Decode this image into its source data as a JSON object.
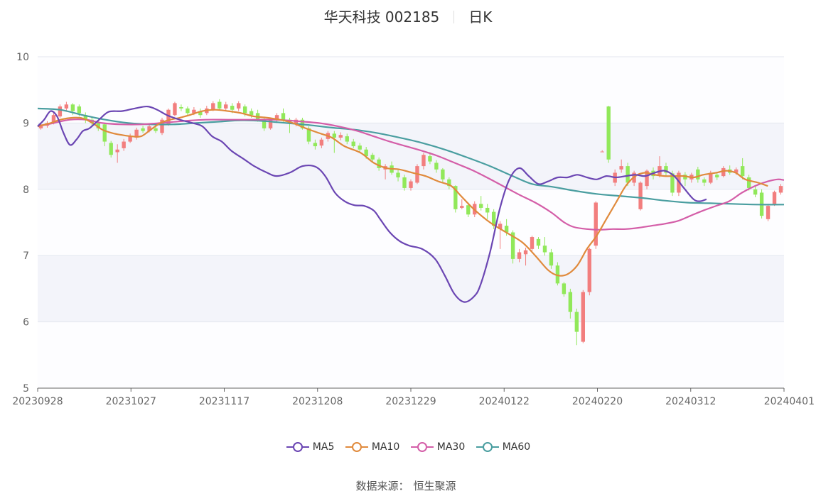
{
  "title": {
    "stock": "华天科技 002185",
    "period": "日K"
  },
  "source": {
    "label": "数据来源：",
    "value": "恒生聚源"
  },
  "colors": {
    "up": "#f27e7e",
    "down": "#91e85a",
    "ma5": "#6b46b3",
    "ma10": "#e08a3c",
    "ma30": "#d45ea8",
    "ma60": "#4a9ea0",
    "band": "#f3f4fa",
    "grid": "#e3e6ef"
  },
  "chart_data": {
    "type": "candlestick",
    "ylim": [
      5,
      10
    ],
    "yticks": [
      "5",
      "6",
      "7",
      "8",
      "9",
      "10"
    ],
    "xticks": [
      "20230928",
      "20231027",
      "20231117",
      "20231208",
      "20231229",
      "20240122",
      "20240220",
      "20240312",
      "20240401"
    ],
    "legend": [
      "MA5",
      "MA10",
      "MA30",
      "MA60"
    ],
    "candles": [
      [
        8.92,
        8.98,
        8.9,
        9.0
      ],
      [
        8.96,
        9.0,
        8.93,
        9.03
      ],
      [
        9.0,
        9.12,
        8.98,
        9.15
      ],
      [
        9.1,
        9.25,
        9.08,
        9.28
      ],
      [
        9.22,
        9.28,
        9.18,
        9.32
      ],
      [
        9.28,
        9.18,
        9.12,
        9.3
      ],
      [
        9.25,
        9.15,
        9.1,
        9.28
      ],
      [
        9.12,
        9.05,
        9.0,
        9.16
      ],
      [
        9.05,
        9.0,
        8.95,
        9.08
      ],
      [
        9.0,
        8.92,
        8.88,
        9.05
      ],
      [
        8.98,
        8.72,
        8.65,
        9.0
      ],
      [
        8.7,
        8.52,
        8.48,
        8.73
      ],
      [
        8.56,
        8.6,
        8.4,
        8.68
      ],
      [
        8.62,
        8.72,
        8.58,
        8.76
      ],
      [
        8.72,
        8.8,
        8.7,
        8.84
      ],
      [
        8.78,
        8.9,
        8.75,
        8.93
      ],
      [
        8.92,
        8.88,
        8.85,
        8.96
      ],
      [
        8.88,
        8.95,
        8.86,
        8.98
      ],
      [
        8.92,
        8.88,
        8.85,
        8.98
      ],
      [
        8.85,
        9.05,
        8.82,
        9.08
      ],
      [
        8.98,
        9.2,
        8.96,
        9.22
      ],
      [
        9.12,
        9.3,
        9.1,
        9.32
      ],
      [
        9.24,
        9.22,
        9.18,
        9.28
      ],
      [
        9.22,
        9.15,
        9.1,
        9.25
      ],
      [
        9.15,
        9.2,
        9.12,
        9.24
      ],
      [
        9.18,
        9.12,
        9.08,
        9.22
      ],
      [
        9.15,
        9.22,
        9.12,
        9.26
      ],
      [
        9.2,
        9.3,
        9.18,
        9.33
      ],
      [
        9.32,
        9.22,
        9.2,
        9.36
      ],
      [
        9.22,
        9.28,
        9.18,
        9.32
      ],
      [
        9.26,
        9.2,
        9.15,
        9.3
      ],
      [
        9.22,
        9.3,
        9.18,
        9.33
      ],
      [
        9.25,
        9.15,
        9.1,
        9.28
      ],
      [
        9.18,
        9.12,
        9.08,
        9.22
      ],
      [
        9.15,
        9.05,
        9.02,
        9.2
      ],
      [
        9.05,
        8.92,
        8.88,
        9.08
      ],
      [
        8.92,
        9.05,
        8.9,
        9.08
      ],
      [
        9.05,
        9.12,
        9.0,
        9.15
      ],
      [
        9.15,
        9.05,
        9.02,
        9.22
      ],
      [
        9.05,
        9.0,
        8.85,
        9.08
      ],
      [
        8.98,
        9.05,
        8.95,
        9.08
      ],
      [
        9.05,
        8.92,
        8.9,
        9.08
      ],
      [
        8.92,
        8.72,
        8.68,
        8.95
      ],
      [
        8.7,
        8.65,
        8.6,
        8.75
      ],
      [
        8.66,
        8.75,
        8.62,
        8.78
      ],
      [
        8.76,
        8.85,
        8.72,
        8.88
      ],
      [
        8.84,
        8.78,
        8.55,
        8.88
      ],
      [
        8.78,
        8.82,
        8.74,
        8.86
      ],
      [
        8.8,
        8.72,
        8.68,
        8.84
      ],
      [
        8.72,
        8.65,
        8.62,
        8.76
      ],
      [
        8.66,
        8.6,
        8.55,
        8.7
      ],
      [
        8.6,
        8.5,
        8.46,
        8.64
      ],
      [
        8.52,
        8.45,
        8.4,
        8.55
      ],
      [
        8.45,
        8.32,
        8.28,
        8.48
      ],
      [
        8.3,
        8.35,
        8.15,
        8.38
      ],
      [
        8.36,
        8.25,
        8.22,
        8.42
      ],
      [
        8.25,
        8.18,
        8.12,
        8.3
      ],
      [
        8.18,
        8.02,
        7.98,
        8.22
      ],
      [
        8.02,
        8.12,
        7.98,
        8.15
      ],
      [
        8.1,
        8.35,
        8.08,
        8.38
      ],
      [
        8.35,
        8.52,
        8.3,
        8.55
      ],
      [
        8.5,
        8.42,
        8.38,
        8.56
      ],
      [
        8.4,
        8.3,
        8.25,
        8.44
      ],
      [
        8.3,
        8.15,
        8.1,
        8.32
      ],
      [
        8.15,
        8.05,
        8.0,
        8.18
      ],
      [
        8.05,
        7.7,
        7.65,
        8.06
      ],
      [
        7.72,
        7.75,
        7.7,
        7.85
      ],
      [
        7.76,
        7.62,
        7.58,
        7.8
      ],
      [
        7.62,
        7.78,
        7.58,
        7.82
      ],
      [
        7.78,
        7.72,
        7.68,
        7.9
      ],
      [
        7.72,
        7.65,
        7.55,
        7.78
      ],
      [
        7.66,
        7.45,
        7.4,
        7.7
      ],
      [
        7.4,
        7.48,
        7.1,
        7.52
      ],
      [
        7.45,
        7.35,
        7.3,
        7.55
      ],
      [
        7.35,
        6.95,
        6.88,
        7.38
      ],
      [
        6.95,
        7.05,
        6.9,
        7.1
      ],
      [
        7.02,
        7.08,
        6.85,
        7.12
      ],
      [
        7.1,
        7.28,
        7.05,
        7.3
      ],
      [
        7.25,
        7.15,
        7.1,
        7.28
      ],
      [
        7.15,
        7.05,
        7.0,
        7.28
      ],
      [
        7.05,
        6.85,
        6.8,
        7.1
      ],
      [
        6.85,
        6.58,
        6.55,
        6.9
      ],
      [
        6.58,
        6.42,
        6.38,
        6.6
      ],
      [
        6.45,
        6.15,
        6.05,
        6.5
      ],
      [
        6.15,
        5.85,
        5.65,
        6.2
      ],
      [
        5.7,
        6.45,
        5.68,
        6.48
      ],
      [
        6.45,
        7.1,
        6.4,
        7.12
      ],
      [
        7.15,
        7.8,
        7.1,
        7.82
      ],
      [
        8.57,
        8.57,
        8.57,
        8.59
      ],
      [
        9.25,
        8.45,
        8.4,
        9.26
      ],
      [
        8.1,
        8.25,
        8.05,
        8.3
      ],
      [
        8.3,
        8.35,
        8.25,
        8.45
      ],
      [
        8.35,
        8.1,
        8.05,
        8.4
      ],
      [
        8.1,
        8.25,
        8.05,
        8.28
      ],
      [
        7.7,
        8.1,
        7.68,
        8.12
      ],
      [
        8.05,
        8.28,
        8.0,
        8.3
      ],
      [
        8.28,
        8.2,
        8.15,
        8.33
      ],
      [
        8.22,
        8.35,
        8.18,
        8.5
      ],
      [
        8.35,
        8.25,
        8.2,
        8.4
      ],
      [
        8.24,
        7.95,
        7.9,
        8.28
      ],
      [
        7.95,
        8.25,
        7.9,
        8.28
      ],
      [
        8.22,
        8.15,
        8.05,
        8.26
      ],
      [
        8.15,
        8.22,
        8.1,
        8.25
      ],
      [
        8.3,
        8.15,
        8.1,
        8.34
      ],
      [
        8.15,
        8.1,
        8.05,
        8.18
      ],
      [
        8.1,
        8.25,
        8.08,
        8.28
      ],
      [
        8.22,
        8.18,
        8.14,
        8.26
      ],
      [
        8.2,
        8.32,
        8.18,
        8.35
      ],
      [
        8.3,
        8.25,
        8.22,
        8.36
      ],
      [
        8.25,
        8.3,
        8.22,
        8.33
      ],
      [
        8.35,
        8.2,
        8.15,
        8.47
      ],
      [
        8.18,
        8.02,
        7.98,
        8.22
      ],
      [
        8.0,
        7.92,
        7.88,
        8.05
      ],
      [
        7.95,
        7.6,
        7.56,
        8.0
      ],
      [
        7.55,
        7.75,
        7.52,
        7.78
      ],
      [
        7.78,
        7.96,
        7.75,
        7.98
      ],
      [
        7.95,
        8.05,
        7.92,
        8.08
      ]
    ],
    "ma5": [
      [
        0,
        8.95
      ],
      [
        4,
        9.05
      ],
      [
        8,
        9.18
      ],
      [
        12,
        9.1
      ],
      [
        16,
        8.85
      ],
      [
        20,
        8.67
      ],
      [
        24,
        8.75
      ],
      [
        28,
        8.88
      ],
      [
        32,
        8.92
      ],
      [
        38,
        9.05
      ],
      [
        44,
        9.17
      ],
      [
        52,
        9.18
      ],
      [
        60,
        9.22
      ],
      [
        68,
        9.25
      ],
      [
        74,
        9.2
      ],
      [
        80,
        9.12
      ],
      [
        88,
        9.05
      ],
      [
        96,
        9.0
      ],
      [
        102,
        8.95
      ],
      [
        108,
        8.8
      ],
      [
        114,
        8.72
      ],
      [
        120,
        8.58
      ],
      [
        128,
        8.45
      ],
      [
        134,
        8.35
      ],
      [
        142,
        8.25
      ],
      [
        148,
        8.2
      ],
      [
        156,
        8.25
      ],
      [
        164,
        8.35
      ],
      [
        172,
        8.34
      ],
      [
        178,
        8.2
      ],
      [
        184,
        7.95
      ],
      [
        190,
        7.82
      ],
      [
        196,
        7.76
      ],
      [
        202,
        7.75
      ],
      [
        208,
        7.68
      ],
      [
        212,
        7.55
      ],
      [
        218,
        7.35
      ],
      [
        224,
        7.22
      ],
      [
        230,
        7.15
      ],
      [
        238,
        7.1
      ],
      [
        246,
        6.95
      ],
      [
        252,
        6.7
      ],
      [
        258,
        6.42
      ],
      [
        264,
        6.3
      ],
      [
        270,
        6.38
      ],
      [
        274,
        6.55
      ],
      [
        280,
        7.05
      ],
      [
        286,
        7.7
      ],
      [
        292,
        8.15
      ],
      [
        298,
        8.32
      ],
      [
        304,
        8.2
      ],
      [
        310,
        8.08
      ],
      [
        316,
        8.12
      ],
      [
        322,
        8.18
      ],
      [
        328,
        8.18
      ],
      [
        334,
        8.22
      ],
      [
        340,
        8.18
      ],
      [
        346,
        8.15
      ],
      [
        352,
        8.2
      ],
      [
        358,
        8.18
      ],
      [
        364,
        8.2
      ],
      [
        370,
        8.22
      ],
      [
        376,
        8.2
      ],
      [
        382,
        8.25
      ],
      [
        388,
        8.28
      ],
      [
        394,
        8.2
      ],
      [
        400,
        8.02
      ],
      [
        406,
        7.85
      ],
      [
        410,
        7.82
      ],
      [
        414,
        7.85
      ]
    ],
    "ma10": [
      [
        0,
        8.95
      ],
      [
        8,
        9.0
      ],
      [
        14,
        9.05
      ],
      [
        22,
        9.08
      ],
      [
        28,
        9.07
      ],
      [
        34,
        9.0
      ],
      [
        40,
        8.9
      ],
      [
        46,
        8.85
      ],
      [
        52,
        8.82
      ],
      [
        58,
        8.8
      ],
      [
        64,
        8.8
      ],
      [
        70,
        8.9
      ],
      [
        76,
        9.0
      ],
      [
        82,
        9.05
      ],
      [
        88,
        9.08
      ],
      [
        94,
        9.12
      ],
      [
        102,
        9.18
      ],
      [
        110,
        9.2
      ],
      [
        118,
        9.18
      ],
      [
        126,
        9.15
      ],
      [
        134,
        9.1
      ],
      [
        142,
        9.08
      ],
      [
        150,
        9.05
      ],
      [
        158,
        9.0
      ],
      [
        166,
        8.92
      ],
      [
        174,
        8.85
      ],
      [
        182,
        8.78
      ],
      [
        190,
        8.65
      ],
      [
        200,
        8.55
      ],
      [
        208,
        8.4
      ],
      [
        216,
        8.32
      ],
      [
        224,
        8.3
      ],
      [
        232,
        8.25
      ],
      [
        240,
        8.2
      ],
      [
        248,
        8.12
      ],
      [
        256,
        8.05
      ],
      [
        262,
        7.9
      ],
      [
        270,
        7.7
      ],
      [
        280,
        7.5
      ],
      [
        290,
        7.35
      ],
      [
        300,
        7.2
      ],
      [
        308,
        7.0
      ],
      [
        316,
        6.78
      ],
      [
        322,
        6.7
      ],
      [
        328,
        6.72
      ],
      [
        334,
        6.85
      ],
      [
        340,
        7.1
      ],
      [
        346,
        7.3
      ],
      [
        352,
        7.55
      ],
      [
        358,
        7.8
      ],
      [
        364,
        8.05
      ],
      [
        370,
        8.2
      ],
      [
        376,
        8.25
      ],
      [
        382,
        8.22
      ],
      [
        388,
        8.2
      ],
      [
        394,
        8.2
      ],
      [
        400,
        8.2
      ],
      [
        406,
        8.18
      ],
      [
        412,
        8.22
      ],
      [
        420,
        8.25
      ],
      [
        426,
        8.28
      ],
      [
        432,
        8.25
      ],
      [
        438,
        8.15
      ],
      [
        446,
        8.1
      ],
      [
        452,
        8.05
      ]
    ],
    "ma30": [
      [
        0,
        8.95
      ],
      [
        10,
        9.0
      ],
      [
        20,
        9.05
      ],
      [
        30,
        9.05
      ],
      [
        40,
        9.0
      ],
      [
        52,
        8.98
      ],
      [
        64,
        8.98
      ],
      [
        76,
        9.0
      ],
      [
        90,
        9.03
      ],
      [
        104,
        9.05
      ],
      [
        118,
        9.05
      ],
      [
        132,
        9.05
      ],
      [
        146,
        9.05
      ],
      [
        160,
        9.03
      ],
      [
        174,
        9.0
      ],
      [
        186,
        8.95
      ],
      [
        198,
        8.88
      ],
      [
        208,
        8.8
      ],
      [
        218,
        8.72
      ],
      [
        228,
        8.65
      ],
      [
        238,
        8.58
      ],
      [
        248,
        8.5
      ],
      [
        258,
        8.4
      ],
      [
        268,
        8.3
      ],
      [
        278,
        8.18
      ],
      [
        288,
        8.05
      ],
      [
        298,
        7.92
      ],
      [
        308,
        7.8
      ],
      [
        318,
        7.65
      ],
      [
        326,
        7.5
      ],
      [
        332,
        7.43
      ],
      [
        340,
        7.4
      ],
      [
        348,
        7.39
      ],
      [
        356,
        7.4
      ],
      [
        364,
        7.4
      ],
      [
        372,
        7.42
      ],
      [
        380,
        7.45
      ],
      [
        388,
        7.48
      ],
      [
        396,
        7.52
      ],
      [
        404,
        7.6
      ],
      [
        412,
        7.68
      ],
      [
        420,
        7.75
      ],
      [
        428,
        7.82
      ],
      [
        436,
        7.95
      ],
      [
        444,
        8.05
      ],
      [
        452,
        8.12
      ],
      [
        458,
        8.15
      ],
      [
        462,
        8.14
      ]
    ],
    "ma60": [
      [
        0,
        9.22
      ],
      [
        14,
        9.2
      ],
      [
        28,
        9.12
      ],
      [
        42,
        9.05
      ],
      [
        56,
        9.0
      ],
      [
        70,
        8.98
      ],
      [
        84,
        8.98
      ],
      [
        98,
        9.0
      ],
      [
        112,
        9.02
      ],
      [
        126,
        9.04
      ],
      [
        140,
        9.03
      ],
      [
        154,
        9.0
      ],
      [
        168,
        8.97
      ],
      [
        182,
        8.93
      ],
      [
        196,
        8.9
      ],
      [
        210,
        8.85
      ],
      [
        224,
        8.78
      ],
      [
        238,
        8.7
      ],
      [
        252,
        8.6
      ],
      [
        266,
        8.48
      ],
      [
        280,
        8.35
      ],
      [
        294,
        8.2
      ],
      [
        306,
        8.08
      ],
      [
        318,
        8.04
      ],
      [
        332,
        7.98
      ],
      [
        346,
        7.93
      ],
      [
        360,
        7.9
      ],
      [
        374,
        7.87
      ],
      [
        388,
        7.83
      ],
      [
        402,
        7.8
      ],
      [
        416,
        7.79
      ],
      [
        430,
        7.78
      ],
      [
        446,
        7.77
      ],
      [
        462,
        7.77
      ]
    ]
  }
}
